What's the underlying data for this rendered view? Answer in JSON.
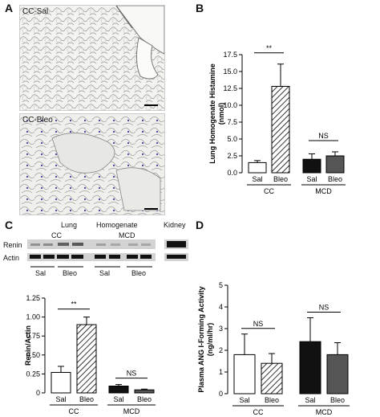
{
  "panels": {
    "A": {
      "letter": "A",
      "top_label": "CC-Sal",
      "bottom_label": "CC-Bleo"
    },
    "B": {
      "letter": "B"
    },
    "C": {
      "letter": "C",
      "lung_label": "Lung",
      "homogenate_label": "Homogenate",
      "kidney_label": "Kidney",
      "cc_label": "CC",
      "mcd_label": "MCD",
      "renin_row": "Renin",
      "actin_row": "Actin",
      "sal_labels": [
        "Sal",
        "Sal"
      ],
      "bleo_labels": [
        "Bleo",
        "Bleo"
      ]
    },
    "D": {
      "letter": "D"
    }
  },
  "chart_data": [
    {
      "id": "B",
      "type": "bar",
      "ylabel": "Lung Homogenate Histamine\n(nmol)",
      "ylim": [
        0,
        17.5
      ],
      "yticks": [
        "0.0",
        "2.5",
        "5.0",
        "7.5",
        "10.0",
        "12.5",
        "15.0",
        "17.5"
      ],
      "categories": [
        "Sal",
        "Bleo",
        "Sal",
        "Bleo"
      ],
      "groups": [
        "CC",
        "MCD"
      ],
      "values": [
        1.5,
        12.8,
        2.0,
        2.5
      ],
      "errors": [
        0.3,
        3.3,
        0.8,
        0.6
      ],
      "fills": [
        "#ffffff",
        "hatch",
        "#111111",
        "#555555"
      ],
      "annotations": [
        {
          "text": "**",
          "between": [
            0,
            1
          ]
        },
        {
          "text": "NS",
          "between": [
            2,
            3
          ]
        }
      ]
    },
    {
      "id": "C",
      "type": "bar",
      "ylabel": "Renin/Actin",
      "ylim": [
        0,
        1.25
      ],
      "yticks": [
        "0",
        "0.25",
        "0.50",
        "0.75",
        "1.00",
        "1.25"
      ],
      "categories": [
        "Sal",
        "Bleo",
        "Sal",
        "Bleo"
      ],
      "groups": [
        "CC",
        "MCD"
      ],
      "values": [
        0.27,
        0.9,
        0.09,
        0.04
      ],
      "errors": [
        0.08,
        0.1,
        0.02,
        0.01
      ],
      "fills": [
        "#ffffff",
        "hatch",
        "#111111",
        "#555555"
      ],
      "annotations": [
        {
          "text": "**",
          "between": [
            0,
            1
          ]
        },
        {
          "text": "NS",
          "between": [
            2,
            3
          ]
        }
      ]
    },
    {
      "id": "D",
      "type": "bar",
      "ylabel": "Plasma ANG I-Forming Activity\n(ng/ml/hr)",
      "ylim": [
        0,
        5
      ],
      "yticks": [
        "0",
        "1",
        "2",
        "3",
        "4",
        "5"
      ],
      "categories": [
        "Sal",
        "Bleo",
        "Sal",
        "Bleo"
      ],
      "groups": [
        "CC",
        "MCD"
      ],
      "values": [
        1.8,
        1.4,
        2.4,
        1.8
      ],
      "errors": [
        0.95,
        0.45,
        1.1,
        0.55
      ],
      "fills": [
        "#ffffff",
        "hatch",
        "#111111",
        "#555555"
      ],
      "annotations": [
        {
          "text": "NS",
          "between": [
            0,
            1
          ]
        },
        {
          "text": "NS",
          "between": [
            2,
            3
          ]
        }
      ]
    }
  ]
}
